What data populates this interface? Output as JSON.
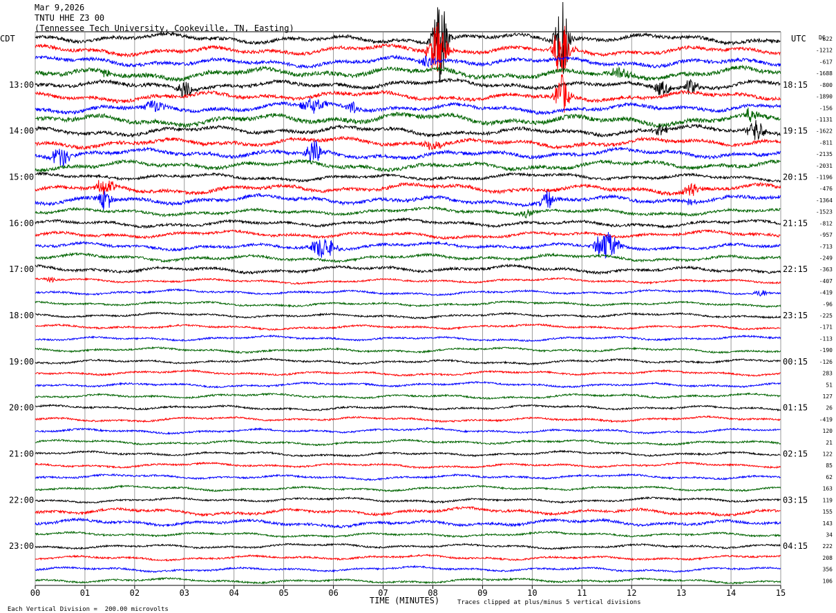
{
  "header": {
    "date": "Mar 9,2026",
    "station": "TNTU HHE Z3 00",
    "location": "(Tennessee Tech University, Cookeville, TN, Easting)"
  },
  "labels": {
    "left_zone": "CDT",
    "right_zone": "UTC",
    "dc_header": "DC"
  },
  "footer": {
    "scale_note": "Each Vertical Division =  200.00 microvolts",
    "clip_note": "Traces clipped at plus/minus 5 vertical divisions"
  },
  "colors": {
    "trace_cycle": [
      "#000000",
      "#ff0000",
      "#0000ff",
      "#006400"
    ],
    "grid": "#808080"
  },
  "chart_data": {
    "type": "line",
    "title": "TNTU HHE Z3 00",
    "xlabel": "TIME (MINUTES)",
    "ylabel": "",
    "xlim": [
      0,
      15
    ],
    "x_ticks": [
      "00",
      "01",
      "02",
      "03",
      "04",
      "05",
      "06",
      "07",
      "08",
      "09",
      "10",
      "11",
      "12",
      "13",
      "14",
      "15"
    ],
    "grid": true,
    "rows_per_hour": 4,
    "minutes_per_row": 15,
    "left_hour_labels": [
      "13:00",
      "14:00",
      "15:00",
      "16:00",
      "17:00",
      "18:00",
      "19:00",
      "20:00",
      "21:00",
      "22:00",
      "23:00"
    ],
    "right_hour_labels": [
      "18:15",
      "19:15",
      "20:15",
      "21:15",
      "22:15",
      "23:15",
      "00:15",
      "01:15",
      "02:15",
      "03:15",
      "04:15"
    ],
    "dc_offsets": [
      "-822",
      "-1212",
      "-617",
      "-1688",
      "-800",
      "-1890",
      "-156",
      "-1131",
      "-1622",
      "-811",
      "-2135",
      "-2031",
      "-1196",
      "-476",
      "-1364",
      "-1523",
      "-812",
      "-957",
      "-713",
      "-249",
      "-363",
      "-407",
      "-419",
      "-96",
      "-225",
      "-171",
      "-113",
      "-190",
      "-126",
      "283",
      "51",
      "127",
      "26",
      "-419",
      "120",
      "21",
      "122",
      "85",
      "62",
      "163",
      "119",
      "155",
      "143",
      "34",
      "222",
      "208",
      "356",
      "106"
    ],
    "trace_noise": [
      4,
      4,
      4,
      5,
      4,
      4,
      4,
      5,
      4,
      4,
      4,
      4,
      3,
      4,
      4,
      3,
      3,
      3,
      3,
      3,
      3,
      2,
      2,
      2,
      2,
      2,
      2,
      2,
      2,
      2,
      2,
      2,
      2,
      2,
      2,
      2,
      2,
      2,
      2,
      2,
      2,
      3,
      3,
      2,
      2,
      2,
      2,
      2
    ],
    "events": [
      {
        "row": 0,
        "minute": 8.15,
        "amp": 60,
        "dur": 0.35
      },
      {
        "row": 0,
        "minute": 10.6,
        "amp": 60,
        "dur": 0.3
      },
      {
        "row": 1,
        "minute": 8.1,
        "amp": 40,
        "dur": 0.4
      },
      {
        "row": 1,
        "minute": 10.6,
        "amp": 45,
        "dur": 0.35
      },
      {
        "row": 2,
        "minute": 7.9,
        "amp": 10,
        "dur": 0.3
      },
      {
        "row": 3,
        "minute": 1.4,
        "amp": 6,
        "dur": 0.2
      },
      {
        "row": 3,
        "minute": 11.8,
        "amp": 10,
        "dur": 0.4
      },
      {
        "row": 4,
        "minute": 3.0,
        "amp": 14,
        "dur": 0.3
      },
      {
        "row": 4,
        "minute": 12.6,
        "amp": 10,
        "dur": 0.4
      },
      {
        "row": 4,
        "minute": 13.2,
        "amp": 12,
        "dur": 0.3
      },
      {
        "row": 5,
        "minute": 10.6,
        "amp": 30,
        "dur": 0.3
      },
      {
        "row": 6,
        "minute": 2.4,
        "amp": 10,
        "dur": 0.4
      },
      {
        "row": 6,
        "minute": 5.6,
        "amp": 10,
        "dur": 0.6
      },
      {
        "row": 6,
        "minute": 6.4,
        "amp": 10,
        "dur": 0.3
      },
      {
        "row": 7,
        "minute": 14.4,
        "amp": 10,
        "dur": 0.3
      },
      {
        "row": 8,
        "minute": 12.6,
        "amp": 8,
        "dur": 0.3
      },
      {
        "row": 8,
        "minute": 14.5,
        "amp": 16,
        "dur": 0.4
      },
      {
        "row": 9,
        "minute": 8.0,
        "amp": 8,
        "dur": 0.5
      },
      {
        "row": 10,
        "minute": 0.5,
        "amp": 16,
        "dur": 0.4
      },
      {
        "row": 10,
        "minute": 5.6,
        "amp": 18,
        "dur": 0.35
      },
      {
        "row": 13,
        "minute": 1.4,
        "amp": 12,
        "dur": 0.4
      },
      {
        "row": 13,
        "minute": 13.2,
        "amp": 10,
        "dur": 0.4
      },
      {
        "row": 14,
        "minute": 1.4,
        "amp": 16,
        "dur": 0.3
      },
      {
        "row": 14,
        "minute": 10.3,
        "amp": 14,
        "dur": 0.3
      },
      {
        "row": 14,
        "minute": 13.2,
        "amp": 8,
        "dur": 0.2
      },
      {
        "row": 15,
        "minute": 9.9,
        "amp": 6,
        "dur": 0.3
      },
      {
        "row": 18,
        "minute": 5.8,
        "amp": 18,
        "dur": 0.5
      },
      {
        "row": 18,
        "minute": 11.5,
        "amp": 22,
        "dur": 0.5
      },
      {
        "row": 21,
        "minute": 0.3,
        "amp": 4,
        "dur": 0.2
      },
      {
        "row": 22,
        "minute": 14.6,
        "amp": 5,
        "dur": 0.3
      }
    ]
  }
}
